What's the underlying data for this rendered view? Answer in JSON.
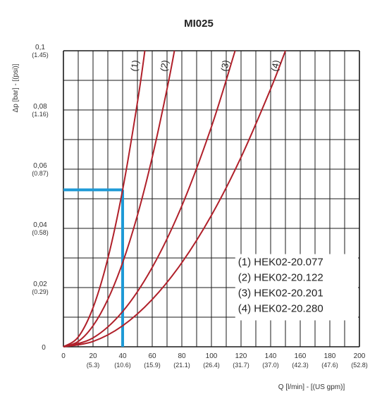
{
  "chart_data": {
    "type": "line",
    "title": "MI025",
    "xlabel": "Q [l/min] - [(US gpm)]",
    "ylabel": "Δp [bar] - [(psi)]",
    "xlim": [
      0,
      200
    ],
    "ylim": [
      0,
      0.1
    ],
    "x_ticks": [
      {
        "value": 0,
        "label": "0",
        "sub": ""
      },
      {
        "value": 20,
        "label": "20",
        "sub": "(5.3)"
      },
      {
        "value": 40,
        "label": "40",
        "sub": "(10.6)"
      },
      {
        "value": 60,
        "label": "60",
        "sub": "(15.9)"
      },
      {
        "value": 80,
        "label": "80",
        "sub": "(21.1)"
      },
      {
        "value": 100,
        "label": "100",
        "sub": "(26.4)"
      },
      {
        "value": 120,
        "label": "120",
        "sub": "(31.7)"
      },
      {
        "value": 140,
        "label": "140",
        "sub": "(37.0)"
      },
      {
        "value": 160,
        "label": "160",
        "sub": "(42.3)"
      },
      {
        "value": 180,
        "label": "180",
        "sub": "(47.6)"
      },
      {
        "value": 200,
        "label": "200",
        "sub": "(52.8)"
      }
    ],
    "y_ticks": [
      {
        "value": 0,
        "label": "0",
        "sub": ""
      },
      {
        "value": 0.02,
        "label": "0,02",
        "sub": "(0.29)"
      },
      {
        "value": 0.04,
        "label": "0,04",
        "sub": "(0.58)"
      },
      {
        "value": 0.06,
        "label": "0,06",
        "sub": "(0.87)"
      },
      {
        "value": 0.08,
        "label": "0,08",
        "sub": "(1.16)"
      },
      {
        "value": 0.1,
        "label": "0,1",
        "sub": "(1.45)"
      }
    ],
    "series": [
      {
        "name": "(1) HEK02-20.077",
        "tag": "(1)",
        "color": "#b0202a",
        "x": [
          0,
          10,
          20,
          30,
          40,
          50,
          55
        ],
        "y": [
          0,
          0.0033,
          0.0132,
          0.0298,
          0.053,
          0.0826,
          0.1
        ]
      },
      {
        "name": "(2) HEK02-20.122",
        "tag": "(2)",
        "color": "#b0202a",
        "x": [
          0,
          10,
          20,
          30,
          40,
          50,
          60,
          70,
          75
        ],
        "y": [
          0,
          0.0018,
          0.0071,
          0.016,
          0.0284,
          0.0444,
          0.064,
          0.0871,
          0.1
        ]
      },
      {
        "name": "(3) HEK02-20.201",
        "tag": "(3)",
        "color": "#b0202a",
        "x": [
          0,
          20,
          40,
          60,
          80,
          100,
          116
        ],
        "y": [
          0,
          0.003,
          0.0119,
          0.0268,
          0.0476,
          0.0743,
          0.1
        ]
      },
      {
        "name": "(4) HEK02-20.280",
        "tag": "(4)",
        "color": "#b0202a",
        "x": [
          0,
          20,
          40,
          60,
          80,
          100,
          120,
          140,
          150
        ],
        "y": [
          0,
          0.0018,
          0.0071,
          0.016,
          0.0284,
          0.0444,
          0.064,
          0.0871,
          0.1
        ]
      }
    ],
    "annotation": {
      "x": 40,
      "y": 0.053,
      "color": "#1f9ad6"
    },
    "legend": [
      "(1) HEK02-20.077",
      "(2) HEK02-20.122",
      "(3) HEK02-20.201",
      "(4) HEK02-20.280"
    ],
    "legend_position": "bottom-right",
    "grid": true
  }
}
